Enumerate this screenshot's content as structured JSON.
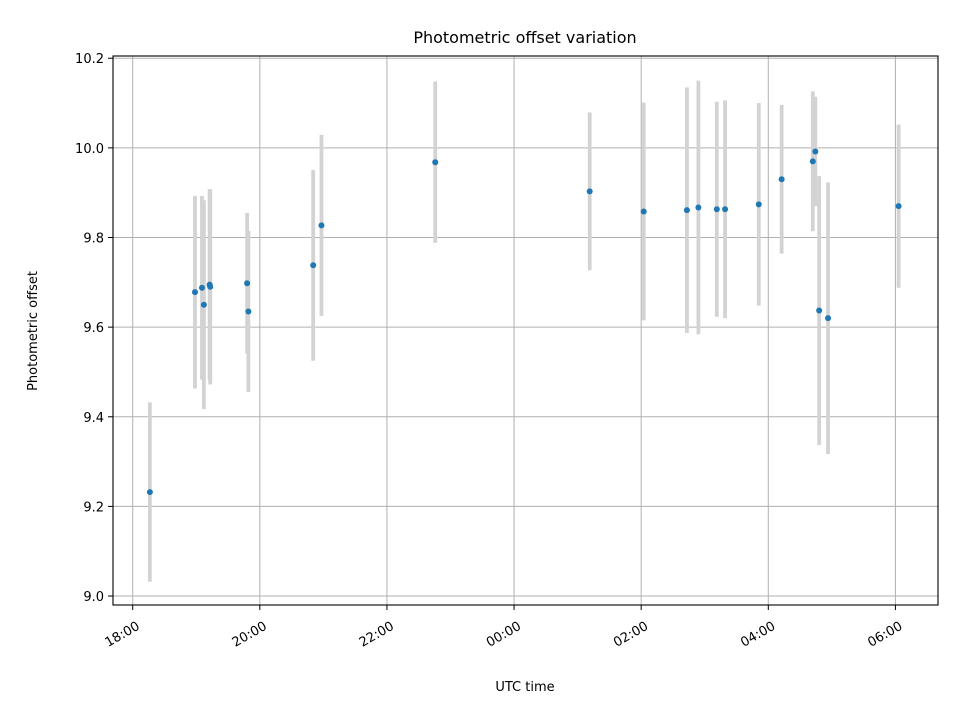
{
  "chart_data": {
    "type": "scatter",
    "title": "Photometric offset variation",
    "xlabel": "UTC time",
    "ylabel": "Photometric offset",
    "x_unit": "hours after 18:00",
    "x_ticks": [
      {
        "x": 0,
        "label": "18:00"
      },
      {
        "x": 2,
        "label": "20:00"
      },
      {
        "x": 4,
        "label": "22:00"
      },
      {
        "x": 6,
        "label": "00:00"
      },
      {
        "x": 8,
        "label": "02:00"
      },
      {
        "x": 10,
        "label": "04:00"
      },
      {
        "x": 12,
        "label": "06:00"
      }
    ],
    "y_ticks": [
      9.0,
      9.2,
      9.4,
      9.6,
      9.8,
      10.0,
      10.2
    ],
    "y_tick_labels": [
      "9.0",
      "9.2",
      "9.4",
      "9.6",
      "9.8",
      "10.0",
      "10.2"
    ],
    "xlim": [
      -0.31,
      12.67
    ],
    "ylim": [
      8.98,
      10.205
    ],
    "grid": true,
    "colors": {
      "point": "#1f77b4",
      "errorbar": "#d3d3d3"
    },
    "series": [
      {
        "points": [
          {
            "x": 0.27,
            "y": 9.232,
            "err": 0.2
          },
          {
            "x": 0.98,
            "y": 9.678,
            "err": 0.215
          },
          {
            "x": 1.09,
            "y": 9.688,
            "err": 0.205
          },
          {
            "x": 1.12,
            "y": 9.65,
            "err": 0.233
          },
          {
            "x": 1.21,
            "y": 9.695,
            "err": 0.213
          },
          {
            "x": 1.22,
            "y": 9.69,
            "err": 0.218
          },
          {
            "x": 1.8,
            "y": 9.698,
            "err": 0.157
          },
          {
            "x": 1.82,
            "y": 9.635,
            "err": 0.18
          },
          {
            "x": 2.84,
            "y": 9.738,
            "err": 0.213
          },
          {
            "x": 2.97,
            "y": 9.827,
            "err": 0.202
          },
          {
            "x": 4.76,
            "y": 9.968,
            "err": 0.18
          },
          {
            "x": 7.19,
            "y": 9.903,
            "err": 0.176
          },
          {
            "x": 8.04,
            "y": 9.858,
            "err": 0.243
          },
          {
            "x": 8.72,
            "y": 9.861,
            "err": 0.274
          },
          {
            "x": 8.9,
            "y": 9.867,
            "err": 0.283
          },
          {
            "x": 9.19,
            "y": 9.863,
            "err": 0.24
          },
          {
            "x": 9.32,
            "y": 9.863,
            "err": 0.243
          },
          {
            "x": 9.85,
            "y": 9.874,
            "err": 0.226
          },
          {
            "x": 10.21,
            "y": 9.93,
            "err": 0.166
          },
          {
            "x": 10.7,
            "y": 9.97,
            "err": 0.156
          },
          {
            "x": 10.74,
            "y": 9.992,
            "err": 0.122
          },
          {
            "x": 10.8,
            "y": 9.637,
            "err": 0.3
          },
          {
            "x": 10.94,
            "y": 9.62,
            "err": 0.303
          },
          {
            "x": 12.05,
            "y": 9.87,
            "err": 0.182
          }
        ]
      }
    ]
  }
}
